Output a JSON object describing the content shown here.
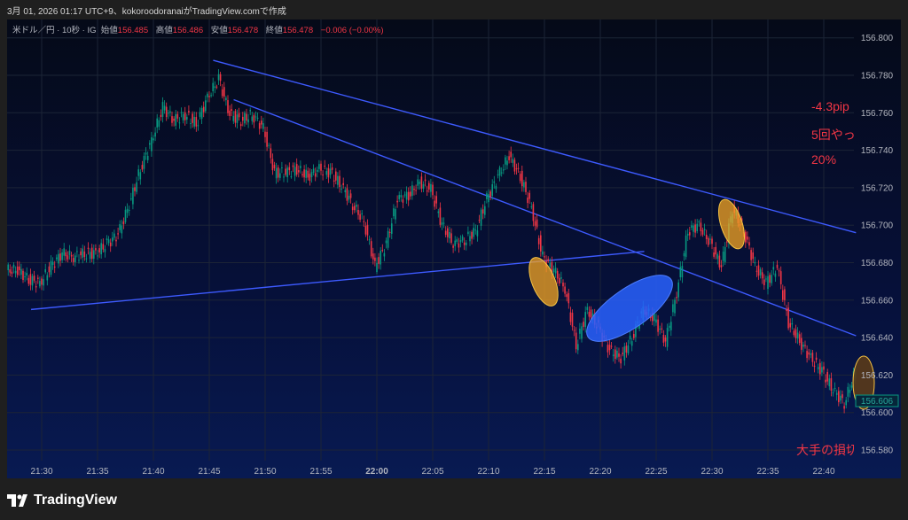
{
  "caption": "3月 01, 2026 01:17 UTC+9、kokoroodoranaiがTradingView.comで作成",
  "legend": {
    "symbol": "米ドル／円 · 10秒 · IG",
    "open_label": "始値",
    "open": "156.485",
    "high_label": "高値",
    "high": "156.486",
    "low_label": "安値",
    "low": "156.478",
    "close_label": "終値",
    "close": "156.478",
    "change": "−0.006 (−0.00%)"
  },
  "annotations": {
    "pips": "-4.3pip",
    "count": "5回やっ",
    "percent": "20%",
    "note": "大手の損切"
  },
  "colors": {
    "up": "#089981",
    "down": "#f23645",
    "trendline": "#3d5afe",
    "highlight_orange": "#f5a623",
    "highlight_blue": "#2962ff",
    "annotation": "#f23645"
  },
  "footer": {
    "brand": "TradingView",
    "logo_icon": "tradingview-logo-icon"
  },
  "chart_data": {
    "type": "candlestick",
    "title": "",
    "ylim": [
      156.57,
      156.81
    ],
    "yticks": [
      "156.800",
      "156.780",
      "156.760",
      "156.740",
      "156.720",
      "156.700",
      "156.680",
      "156.660",
      "156.640",
      "156.620",
      "156.600",
      "156.580"
    ],
    "xticks": [
      "21:30",
      "21:35",
      "21:40",
      "21:45",
      "21:50",
      "21:55",
      "22:00",
      "22:05",
      "22:10",
      "22:15",
      "22:20",
      "22:25",
      "22:30",
      "22:35",
      "22:40"
    ],
    "x_bold_tick": "22:00",
    "start_time": "21:27",
    "step_minutes": 1,
    "closes": [
      156.676,
      156.671,
      156.669,
      156.678,
      156.685,
      156.683,
      156.685,
      156.685,
      156.69,
      156.695,
      156.711,
      156.73,
      156.745,
      156.763,
      156.756,
      156.759,
      156.754,
      156.768,
      156.778,
      156.759,
      156.756,
      156.759,
      156.752,
      156.728,
      156.728,
      156.73,
      156.726,
      156.73,
      156.728,
      156.721,
      156.711,
      156.702,
      156.678,
      156.69,
      156.714,
      156.716,
      156.723,
      156.719,
      156.7,
      156.69,
      156.692,
      156.697,
      156.714,
      156.726,
      156.737,
      156.726,
      156.709,
      156.683,
      156.676,
      156.666,
      156.636,
      156.655,
      156.645,
      156.633,
      156.629,
      156.64,
      156.655,
      156.65,
      156.638,
      156.664,
      156.697,
      156.7,
      156.69,
      156.678,
      156.709,
      156.697,
      156.678,
      156.669,
      156.678,
      156.648,
      156.638,
      156.629,
      156.622,
      156.612,
      156.605,
      156.622
    ],
    "current_price": "156.606",
    "trendlines": [
      {
        "from": [
          "21:45:21",
          156.788
        ],
        "to": [
          "22:42:53",
          156.696
        ]
      },
      {
        "from": [
          "21:47:11",
          156.767
        ],
        "to": [
          "22:42:53",
          156.641
        ]
      },
      {
        "from": [
          "21:29:03",
          156.655
        ],
        "to": [
          "22:23:56",
          156.686
        ]
      }
    ]
  }
}
